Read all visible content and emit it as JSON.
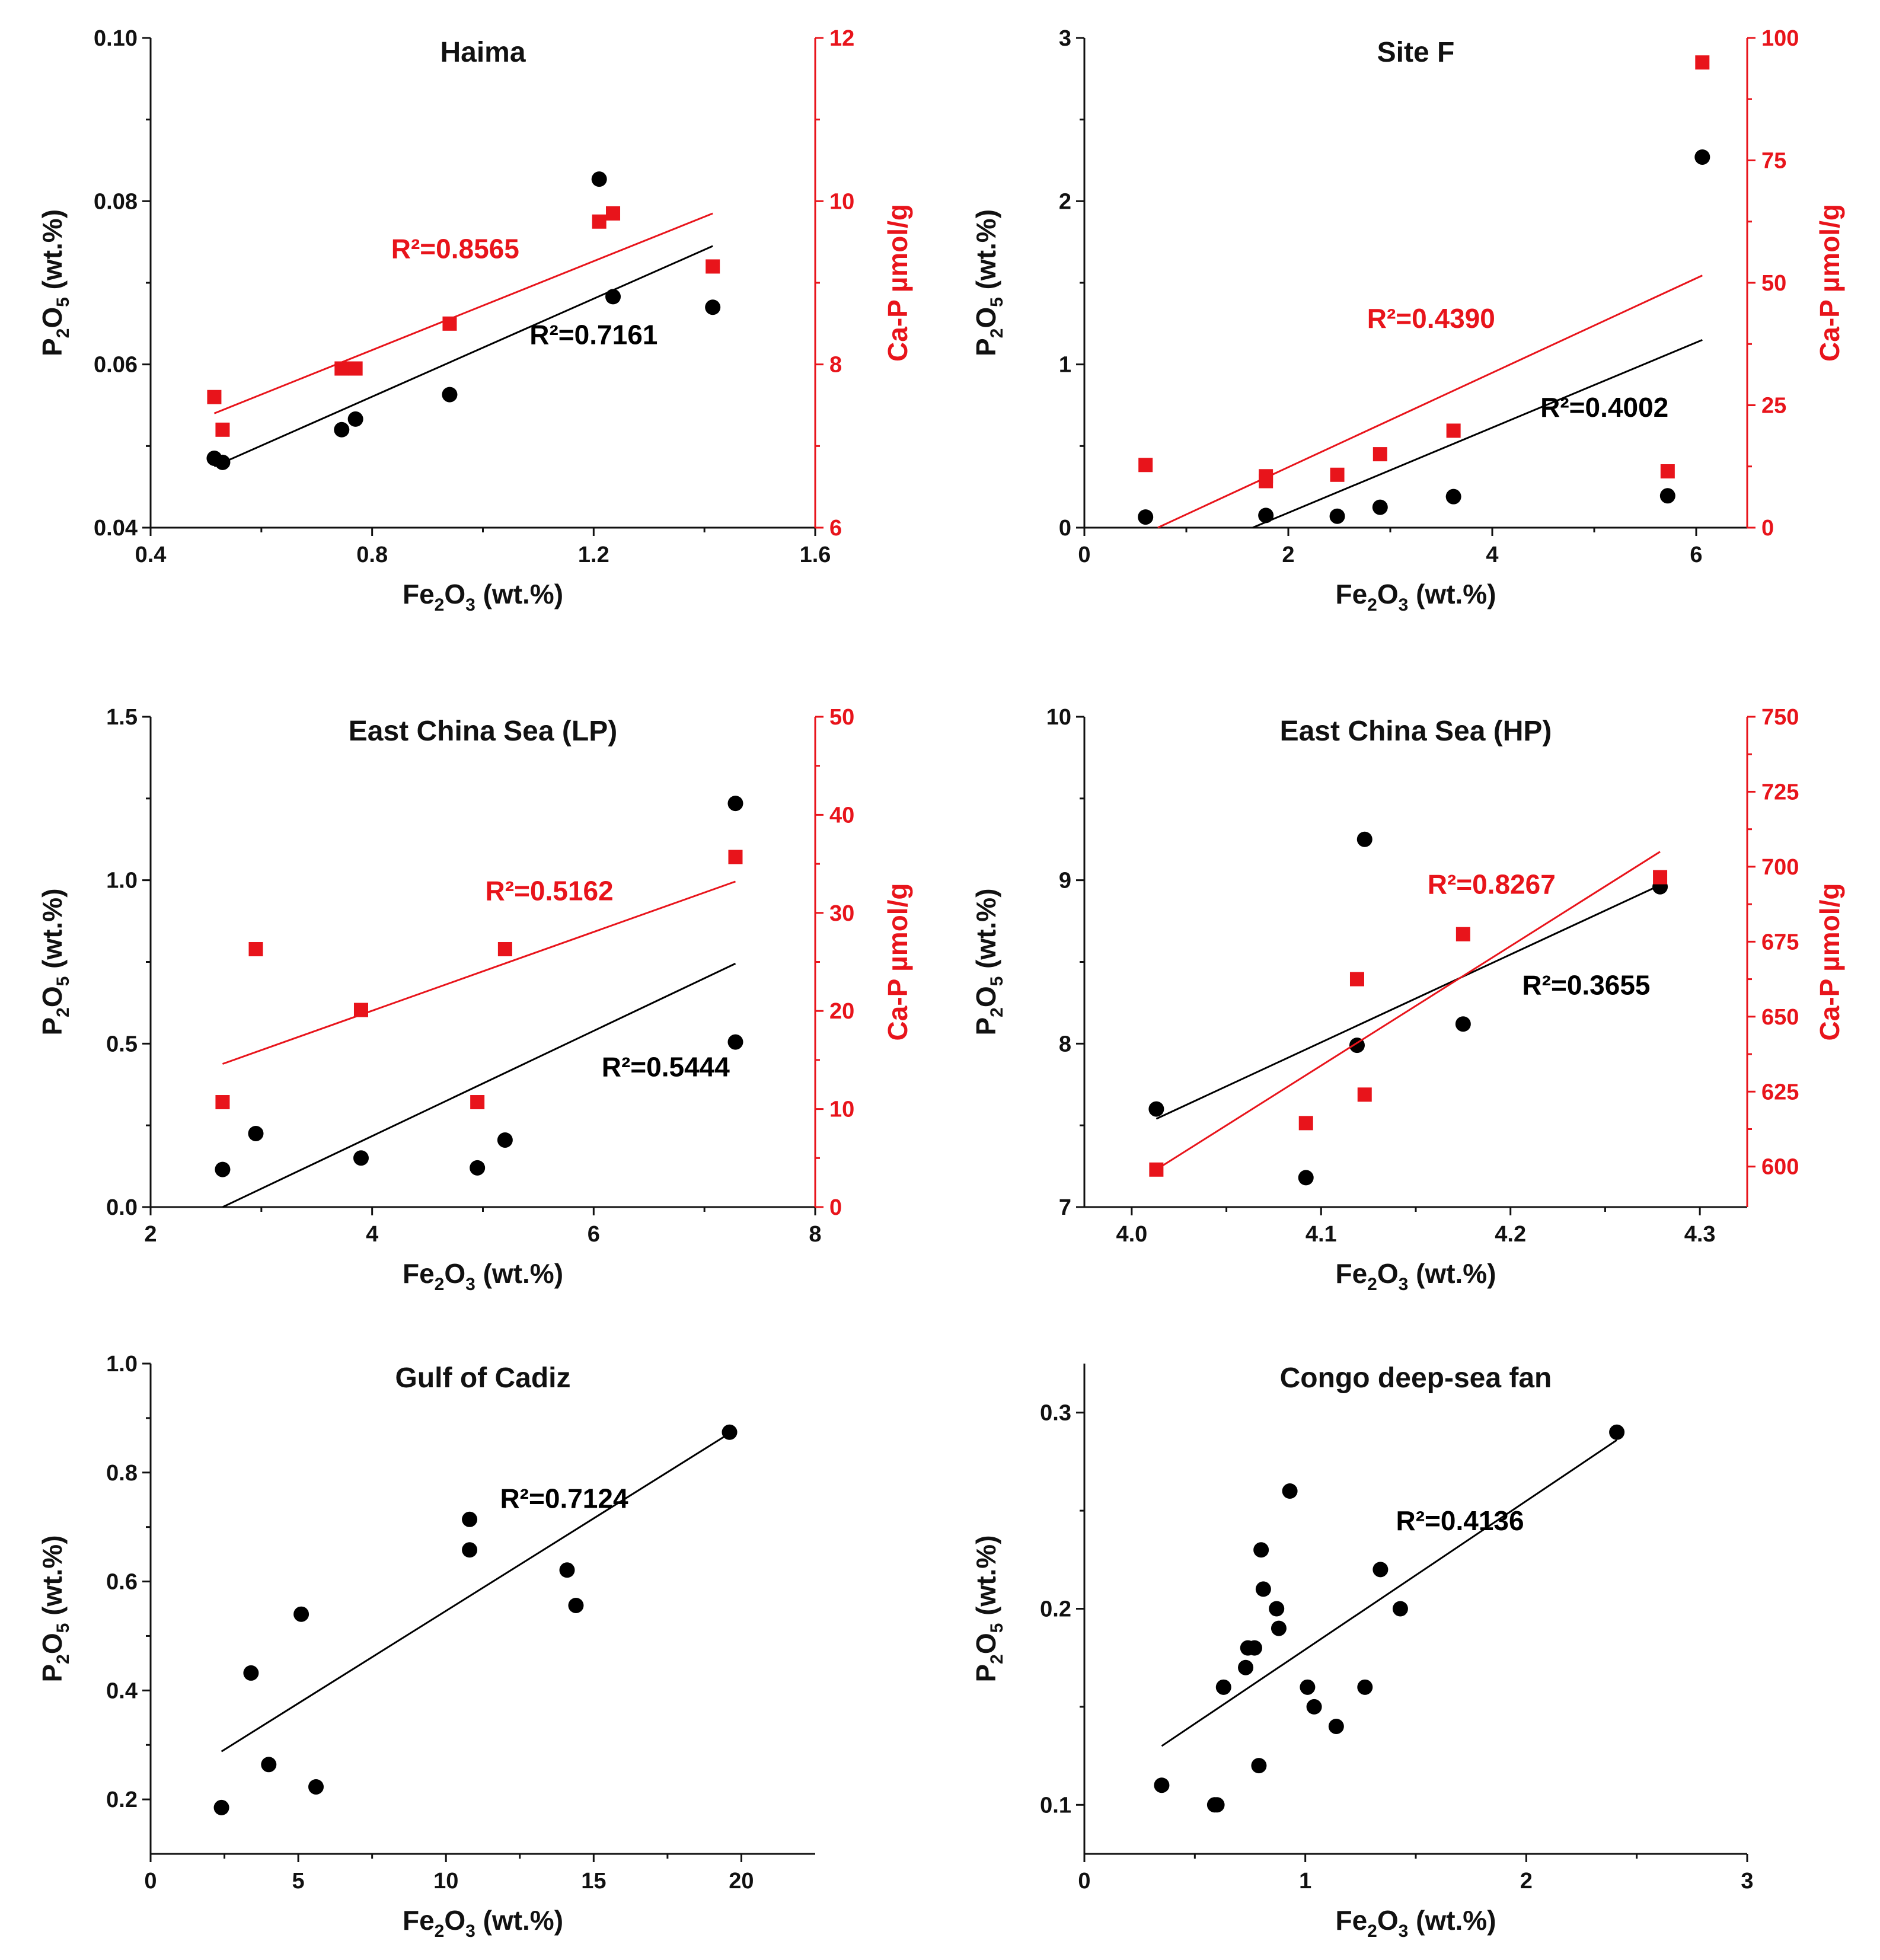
{
  "chart_data": [
    {
      "type": "scatter",
      "title": "Haima",
      "xlabel": {
        "main": "Fe",
        "sub1": "2",
        "mid": "O",
        "sub2": "3",
        "tail": " (wt.%)"
      },
      "ylabel": {
        "main": "P",
        "sub1": "2",
        "mid": "O",
        "sub2": "5",
        "tail": " (wt.%)"
      },
      "y2label": "Ca-P µmol/g",
      "xlim": [
        0.4,
        1.6
      ],
      "xticks": [
        0.4,
        0.8,
        1.2,
        1.6
      ],
      "xtick_labels": [
        "0.4",
        "0.8",
        "1.2",
        "1.6"
      ],
      "ylim": [
        0.04,
        0.1
      ],
      "yticks": [
        0.04,
        0.06,
        0.08,
        0.1
      ],
      "ytick_labels": [
        "0.04",
        "0.06",
        "0.08",
        "0.10"
      ],
      "y2lim": [
        6,
        12
      ],
      "y2ticks": [
        6,
        8,
        10,
        12
      ],
      "y2tick_labels": [
        "6",
        "8",
        "10",
        "12"
      ],
      "series": [
        {
          "name": "P2O5",
          "color": "#000000",
          "marker": "circle",
          "x": [
            0.515,
            0.53,
            0.745,
            0.77,
            0.94,
            1.21,
            1.235,
            1.415
          ],
          "y": [
            0.0485,
            0.048,
            0.052,
            0.0533,
            0.0563,
            0.0827,
            0.0683,
            0.067
          ],
          "fit": [
            [
              0.515,
              0.0475
            ],
            [
              1.415,
              0.0745
            ]
          ],
          "r2": "R²=0.7161",
          "r2_at": [
            1.2,
            0.0625
          ]
        },
        {
          "name": "Ca-P",
          "color": "#e8141b",
          "marker": "square",
          "axis": "y2",
          "x": [
            0.515,
            0.53,
            0.745,
            0.77,
            0.94,
            1.21,
            1.235,
            1.415
          ],
          "y": [
            7.6,
            7.2,
            7.95,
            7.95,
            8.5,
            9.75,
            9.85,
            9.2
          ],
          "fit": [
            [
              0.515,
              7.4
            ],
            [
              1.415,
              9.85
            ]
          ],
          "r2": "R²=0.8565",
          "r2_at": [
            0.95,
            9.3
          ]
        }
      ]
    },
    {
      "type": "scatter",
      "title": "Site F",
      "xlabel": {
        "main": "Fe",
        "sub1": "2",
        "mid": "O",
        "sub2": "3",
        "tail": " (wt.%)"
      },
      "ylabel": {
        "main": "P",
        "sub1": "2",
        "mid": "O",
        "sub2": "5",
        "tail": " (wt.%)"
      },
      "y2label": "Ca-P µmol/g",
      "xlim": [
        0,
        6.5
      ],
      "xticks": [
        0,
        2,
        4,
        6
      ],
      "xtick_labels": [
        "0",
        "2",
        "4",
        "6"
      ],
      "ylim": [
        0,
        3
      ],
      "yticks": [
        0,
        1,
        2,
        3
      ],
      "ytick_labels": [
        "0",
        "1",
        "2",
        "3"
      ],
      "y2lim": [
        0,
        100
      ],
      "y2ticks": [
        0,
        25,
        50,
        75,
        100
      ],
      "y2tick_labels": [
        "0",
        "25",
        "50",
        "75",
        "100"
      ],
      "series": [
        {
          "name": "P2O5",
          "color": "#000000",
          "marker": "circle",
          "x": [
            0.6,
            1.78,
            2.48,
            2.9,
            3.62,
            5.72,
            6.06
          ],
          "y": [
            0.065,
            0.075,
            0.07,
            0.125,
            0.19,
            0.195,
            2.27
          ],
          "fit": [
            [
              1.65,
              0.0
            ],
            [
              6.06,
              1.15
            ]
          ],
          "r2": "R²=0.4002",
          "r2_at": [
            5.1,
            0.68
          ]
        },
        {
          "name": "Ca-P",
          "color": "#e8141b",
          "marker": "square",
          "axis": "y2",
          "x": [
            0.6,
            1.78,
            1.78,
            2.48,
            2.9,
            3.62,
            5.72,
            6.06
          ],
          "y": [
            12.8,
            10.5,
            9.5,
            10.8,
            15,
            19.8,
            11.5,
            95
          ],
          "fit": [
            [
              0.72,
              0.0
            ],
            [
              6.06,
              51.5
            ]
          ],
          "r2": "R²=0.4390",
          "r2_at": [
            3.4,
            40.8
          ]
        }
      ]
    },
    {
      "type": "scatter",
      "title": "East China Sea (LP)",
      "xlabel": {
        "main": "Fe",
        "sub1": "2",
        "mid": "O",
        "sub2": "3",
        "tail": " (wt.%)"
      },
      "ylabel": {
        "main": "P",
        "sub1": "2",
        "mid": "O",
        "sub2": "5",
        "tail": " (wt.%)"
      },
      "y2label": "Ca-P µmol/g",
      "xlim": [
        2,
        8
      ],
      "xticks": [
        2,
        4,
        6,
        8
      ],
      "xtick_labels": [
        "2",
        "4",
        "6",
        "8"
      ],
      "ylim": [
        0,
        1.5
      ],
      "yticks": [
        0,
        0.5,
        1.0,
        1.5
      ],
      "ytick_labels": [
        "0.0",
        "0.5",
        "1.0",
        "1.5"
      ],
      "y2lim": [
        0,
        50
      ],
      "y2ticks": [
        0,
        10,
        20,
        30,
        40,
        50
      ],
      "y2tick_labels": [
        "0",
        "10",
        "20",
        "30",
        "40",
        "50"
      ],
      "series": [
        {
          "name": "P2O5",
          "color": "#000000",
          "marker": "circle",
          "x": [
            2.65,
            2.95,
            3.9,
            4.95,
            5.2,
            7.28,
            7.28
          ],
          "y": [
            0.115,
            0.225,
            0.15,
            0.12,
            0.205,
            0.505,
            1.235
          ],
          "fit": [
            [
              2.65,
              0.0
            ],
            [
              7.28,
              0.745
            ]
          ],
          "r2": "R²=0.5444",
          "r2_at": [
            6.65,
            0.4
          ]
        },
        {
          "name": "Ca-P",
          "color": "#e8141b",
          "marker": "square",
          "axis": "y2",
          "x": [
            2.65,
            2.95,
            3.9,
            4.95,
            5.2,
            7.28
          ],
          "y": [
            10.7,
            26.3,
            20.1,
            10.7,
            26.3,
            35.7
          ],
          "fit": [
            [
              2.65,
              14.6
            ],
            [
              7.28,
              33.2
            ]
          ],
          "r2": "R²=0.5162",
          "r2_at": [
            5.6,
            31.3
          ]
        }
      ]
    },
    {
      "type": "scatter",
      "title": "East China Sea (HP)",
      "xlabel": {
        "main": "Fe",
        "sub1": "2",
        "mid": "O",
        "sub2": "3",
        "tail": " (wt.%)"
      },
      "ylabel": {
        "main": "P",
        "sub1": "2",
        "mid": "O",
        "sub2": "5",
        "tail": " (wt.%)"
      },
      "y2label": "Ca-P µmol/g",
      "xlim": [
        3.975,
        4.325
      ],
      "xticks": [
        4.0,
        4.1,
        4.2,
        4.3
      ],
      "xtick_labels": [
        "4.0",
        "4.1",
        "4.2",
        "4.3"
      ],
      "ylim": [
        7,
        10
      ],
      "yticks": [
        7,
        8,
        9,
        10
      ],
      "ytick_labels": [
        "7",
        "8",
        "9",
        "10"
      ],
      "y2lim": [
        586.5,
        750
      ],
      "y2ticks": [
        600,
        625,
        650,
        675,
        700,
        725,
        750
      ],
      "y2tick_labels": [
        "600",
        "625",
        "650",
        "675",
        "700",
        "725",
        "750"
      ],
      "series": [
        {
          "name": "P2O5",
          "color": "#000000",
          "marker": "circle",
          "x": [
            4.013,
            4.092,
            4.119,
            4.123,
            4.175,
            4.279
          ],
          "y": [
            7.6,
            7.18,
            7.99,
            9.25,
            8.12,
            8.96
          ],
          "fit": [
            [
              4.013,
              7.54
            ],
            [
              4.279,
              8.97
            ]
          ],
          "r2": "R²=0.3655",
          "r2_at": [
            4.24,
            8.3
          ]
        },
        {
          "name": "Ca-P",
          "color": "#e8141b",
          "marker": "square",
          "axis": "y2",
          "x": [
            4.013,
            4.092,
            4.119,
            4.123,
            4.175,
            4.279
          ],
          "y": [
            599,
            614.5,
            662.5,
            624,
            677.5,
            696.5
          ],
          "fit": [
            [
              4.013,
              599
            ],
            [
              4.279,
              705
            ]
          ],
          "r2": "R²=0.8267",
          "r2_at": [
            4.19,
            691
          ]
        }
      ]
    },
    {
      "type": "scatter",
      "title": "Gulf of Cadiz",
      "xlabel": {
        "main": "Fe",
        "sub1": "2",
        "mid": "O",
        "sub2": "3",
        "tail": " (wt.%)"
      },
      "ylabel": {
        "main": "P",
        "sub1": "2",
        "mid": "O",
        "sub2": "5",
        "tail": " (wt.%)"
      },
      "xlim": [
        0,
        22.5
      ],
      "xticks": [
        0,
        5,
        10,
        15,
        20
      ],
      "xtick_labels": [
        "0",
        "5",
        "10",
        "15",
        "20"
      ],
      "ylim": [
        0.1,
        1.0
      ],
      "yticks": [
        0.2,
        0.4,
        0.6,
        0.8,
        1.0
      ],
      "ytick_labels": [
        "0.2",
        "0.4",
        "0.6",
        "0.8",
        "1.0"
      ],
      "series": [
        {
          "name": "P2O5",
          "color": "#000000",
          "marker": "circle",
          "x": [
            2.4,
            3.4,
            4.0,
            5.1,
            5.6,
            10.8,
            10.8,
            14.1,
            14.4,
            19.6
          ],
          "y": [
            0.185,
            0.432,
            0.264,
            0.54,
            0.223,
            0.714,
            0.658,
            0.621,
            0.556,
            0.874
          ],
          "fit": [
            [
              2.4,
              0.288
            ],
            [
              19.6,
              0.872
            ]
          ],
          "r2": "R²=0.7124",
          "r2_at": [
            14.0,
            0.735
          ]
        }
      ]
    },
    {
      "type": "scatter",
      "title": "Congo deep-sea fan",
      "xlabel": {
        "main": "Fe",
        "sub1": "2",
        "mid": "O",
        "sub2": "3",
        "tail": " (wt.%)"
      },
      "ylabel": {
        "main": "P",
        "sub1": "2",
        "mid": "O",
        "sub2": "5",
        "tail": " (wt.%)"
      },
      "xlim": [
        0,
        3
      ],
      "xticks": [
        0,
        1,
        2,
        3
      ],
      "xtick_labels": [
        "0",
        "1",
        "2",
        "3"
      ],
      "ylim": [
        0.075,
        0.325
      ],
      "yticks": [
        0.1,
        0.2,
        0.3
      ],
      "ytick_labels": [
        "0.1",
        "0.2",
        "0.3"
      ],
      "series": [
        {
          "name": "P2O5",
          "color": "#000000",
          "marker": "circle",
          "x": [
            0.35,
            0.59,
            0.6,
            0.63,
            0.73,
            0.74,
            0.77,
            0.79,
            0.8,
            0.81,
            0.87,
            0.88,
            0.93,
            1.01,
            1.04,
            1.14,
            1.27,
            1.34,
            1.43,
            2.41
          ],
          "y": [
            0.11,
            0.1,
            0.1,
            0.16,
            0.17,
            0.18,
            0.18,
            0.12,
            0.23,
            0.21,
            0.2,
            0.19,
            0.26,
            0.16,
            0.15,
            0.14,
            0.16,
            0.22,
            0.2,
            0.29
          ],
          "fit": [
            [
              0.35,
              0.13
            ],
            [
              2.41,
              0.286
            ]
          ],
          "r2": "R²=0.4136",
          "r2_at": [
            1.7,
            0.24
          ]
        }
      ]
    }
  ]
}
